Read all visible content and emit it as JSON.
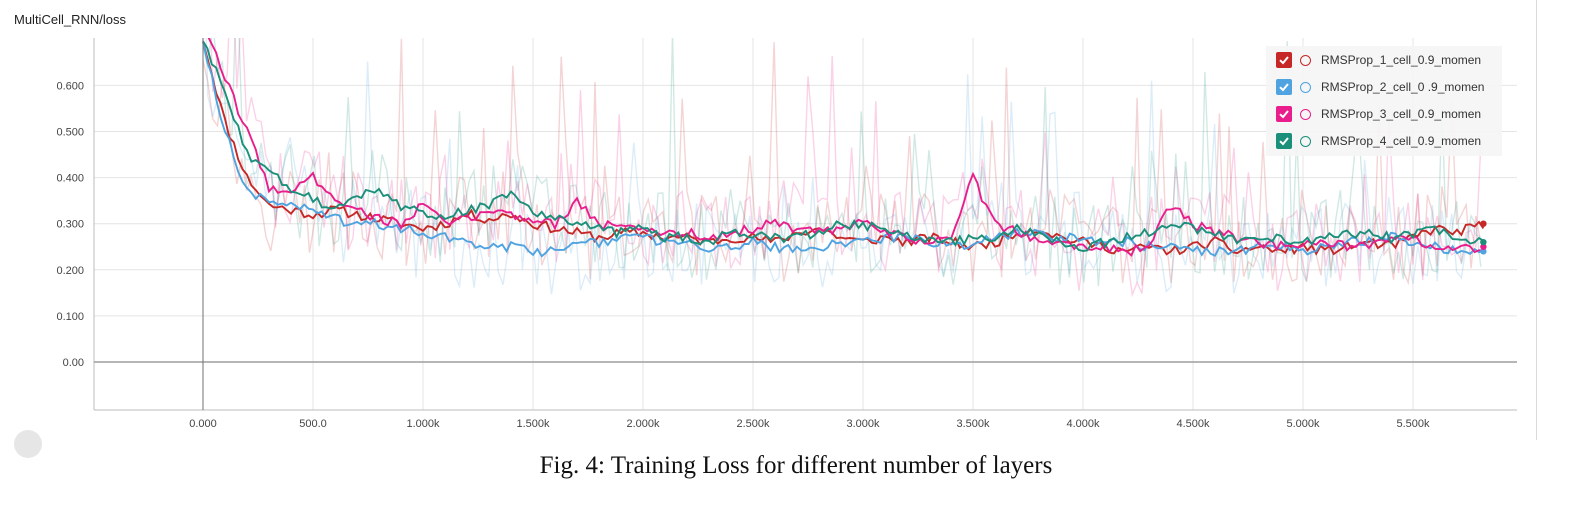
{
  "figure": {
    "caption": "Fig. 4: Training Loss for different number of layers"
  },
  "chart_data": {
    "type": "line",
    "title": "MultiCell_RNN/loss",
    "xlabel": "",
    "ylabel": "",
    "xlim": [
      -500,
      5900
    ],
    "ylim": [
      -0.1,
      0.7
    ],
    "grid": true,
    "legend_position": "top-right",
    "x_ticks": [
      0,
      500,
      1000,
      1500,
      2000,
      2500,
      3000,
      3500,
      4000,
      4500,
      5000,
      5500
    ],
    "x_tick_labels": [
      "0.000",
      "500.0",
      "1.000k",
      "1.500k",
      "2.000k",
      "2.500k",
      "3.000k",
      "3.500k",
      "4.000k",
      "4.500k",
      "5.000k",
      "5.500k"
    ],
    "y_ticks": [
      0,
      0.1,
      0.2,
      0.3,
      0.4,
      0.5,
      0.6
    ],
    "y_tick_labels": [
      "0.00",
      "0.100",
      "0.200",
      "0.300",
      "0.400",
      "0.500",
      "0.600"
    ],
    "x": [
      0,
      100,
      200,
      300,
      400,
      500,
      600,
      700,
      800,
      900,
      1000,
      1100,
      1200,
      1300,
      1400,
      1500,
      1600,
      1700,
      1800,
      1900,
      2000,
      2100,
      2200,
      2300,
      2400,
      2500,
      2600,
      2700,
      2800,
      2900,
      3000,
      3100,
      3200,
      3300,
      3400,
      3500,
      3600,
      3700,
      3800,
      3900,
      4000,
      4100,
      4200,
      4300,
      4400,
      4500,
      4600,
      4700,
      4800,
      4900,
      5000,
      5100,
      5200,
      5300,
      5400,
      5500,
      5600,
      5700,
      5800
    ],
    "series": [
      {
        "name": "RMSProp_1_cell_0.9_momen",
        "color": "#c62828",
        "values": [
          0.7,
          0.52,
          0.4,
          0.34,
          0.33,
          0.32,
          0.33,
          0.32,
          0.31,
          0.3,
          0.29,
          0.3,
          0.32,
          0.31,
          0.32,
          0.3,
          0.29,
          0.28,
          0.27,
          0.28,
          0.28,
          0.27,
          0.27,
          0.26,
          0.27,
          0.27,
          0.26,
          0.28,
          0.29,
          0.27,
          0.26,
          0.27,
          0.26,
          0.27,
          0.26,
          0.25,
          0.26,
          0.28,
          0.29,
          0.27,
          0.26,
          0.25,
          0.24,
          0.25,
          0.24,
          0.25,
          0.26,
          0.24,
          0.25,
          0.24,
          0.25,
          0.24,
          0.25,
          0.26,
          0.25,
          0.27,
          0.29,
          0.28,
          0.3
        ]
      },
      {
        "name": "RMSProp_2_cell_0 .9_momen",
        "color": "#4fa3e0",
        "values": [
          0.7,
          0.5,
          0.37,
          0.35,
          0.34,
          0.33,
          0.31,
          0.3,
          0.3,
          0.29,
          0.28,
          0.27,
          0.26,
          0.25,
          0.25,
          0.24,
          0.24,
          0.25,
          0.26,
          0.27,
          0.27,
          0.26,
          0.26,
          0.25,
          0.25,
          0.26,
          0.25,
          0.24,
          0.25,
          0.26,
          0.26,
          0.27,
          0.27,
          0.26,
          0.25,
          0.26,
          0.27,
          0.28,
          0.28,
          0.27,
          0.27,
          0.26,
          0.26,
          0.25,
          0.25,
          0.24,
          0.24,
          0.24,
          0.25,
          0.25,
          0.24,
          0.25,
          0.26,
          0.26,
          0.27,
          0.26,
          0.25,
          0.24,
          0.24
        ]
      },
      {
        "name": "RMSProp_3_cell_0.9_momen",
        "color": "#e91e8c",
        "values": [
          0.72,
          0.62,
          0.5,
          0.38,
          0.37,
          0.4,
          0.36,
          0.33,
          0.31,
          0.3,
          0.34,
          0.3,
          0.31,
          0.33,
          0.32,
          0.31,
          0.3,
          0.35,
          0.3,
          0.29,
          0.29,
          0.28,
          0.28,
          0.27,
          0.28,
          0.29,
          0.3,
          0.29,
          0.28,
          0.29,
          0.3,
          0.28,
          0.27,
          0.26,
          0.27,
          0.4,
          0.3,
          0.28,
          0.27,
          0.26,
          0.25,
          0.25,
          0.24,
          0.25,
          0.34,
          0.3,
          0.28,
          0.27,
          0.26,
          0.25,
          0.25,
          0.26,
          0.25,
          0.25,
          0.26,
          0.27,
          0.25,
          0.24,
          0.25
        ]
      },
      {
        "name": "RMSProp_4_cell_0.9_momen",
        "color": "#1a8f7a",
        "values": [
          0.7,
          0.58,
          0.45,
          0.41,
          0.38,
          0.35,
          0.34,
          0.36,
          0.37,
          0.34,
          0.32,
          0.31,
          0.33,
          0.34,
          0.37,
          0.33,
          0.31,
          0.3,
          0.29,
          0.28,
          0.29,
          0.27,
          0.27,
          0.26,
          0.28,
          0.28,
          0.27,
          0.27,
          0.28,
          0.3,
          0.3,
          0.28,
          0.27,
          0.27,
          0.26,
          0.27,
          0.27,
          0.29,
          0.28,
          0.26,
          0.25,
          0.26,
          0.27,
          0.28,
          0.3,
          0.29,
          0.28,
          0.26,
          0.26,
          0.27,
          0.26,
          0.27,
          0.28,
          0.28,
          0.27,
          0.28,
          0.29,
          0.27,
          0.26
        ]
      }
    ],
    "raw_series_note_free": true
  },
  "legend": {
    "items": [
      {
        "label": "RMSProp_1_cell_0.9_momen",
        "color": "#c62828",
        "checked": true
      },
      {
        "label": "RMSProp_2_cell_0 .9_momen",
        "color": "#4fa3e0",
        "checked": true
      },
      {
        "label": "RMSProp_3_cell_0.9_momen",
        "color": "#e91e8c",
        "checked": true
      },
      {
        "label": "RMSProp_4_cell_0.9_momen",
        "color": "#1a8f7a",
        "checked": true
      }
    ]
  },
  "icons": {
    "checkbox": "check-icon",
    "series_toggle": "circle-icon"
  }
}
